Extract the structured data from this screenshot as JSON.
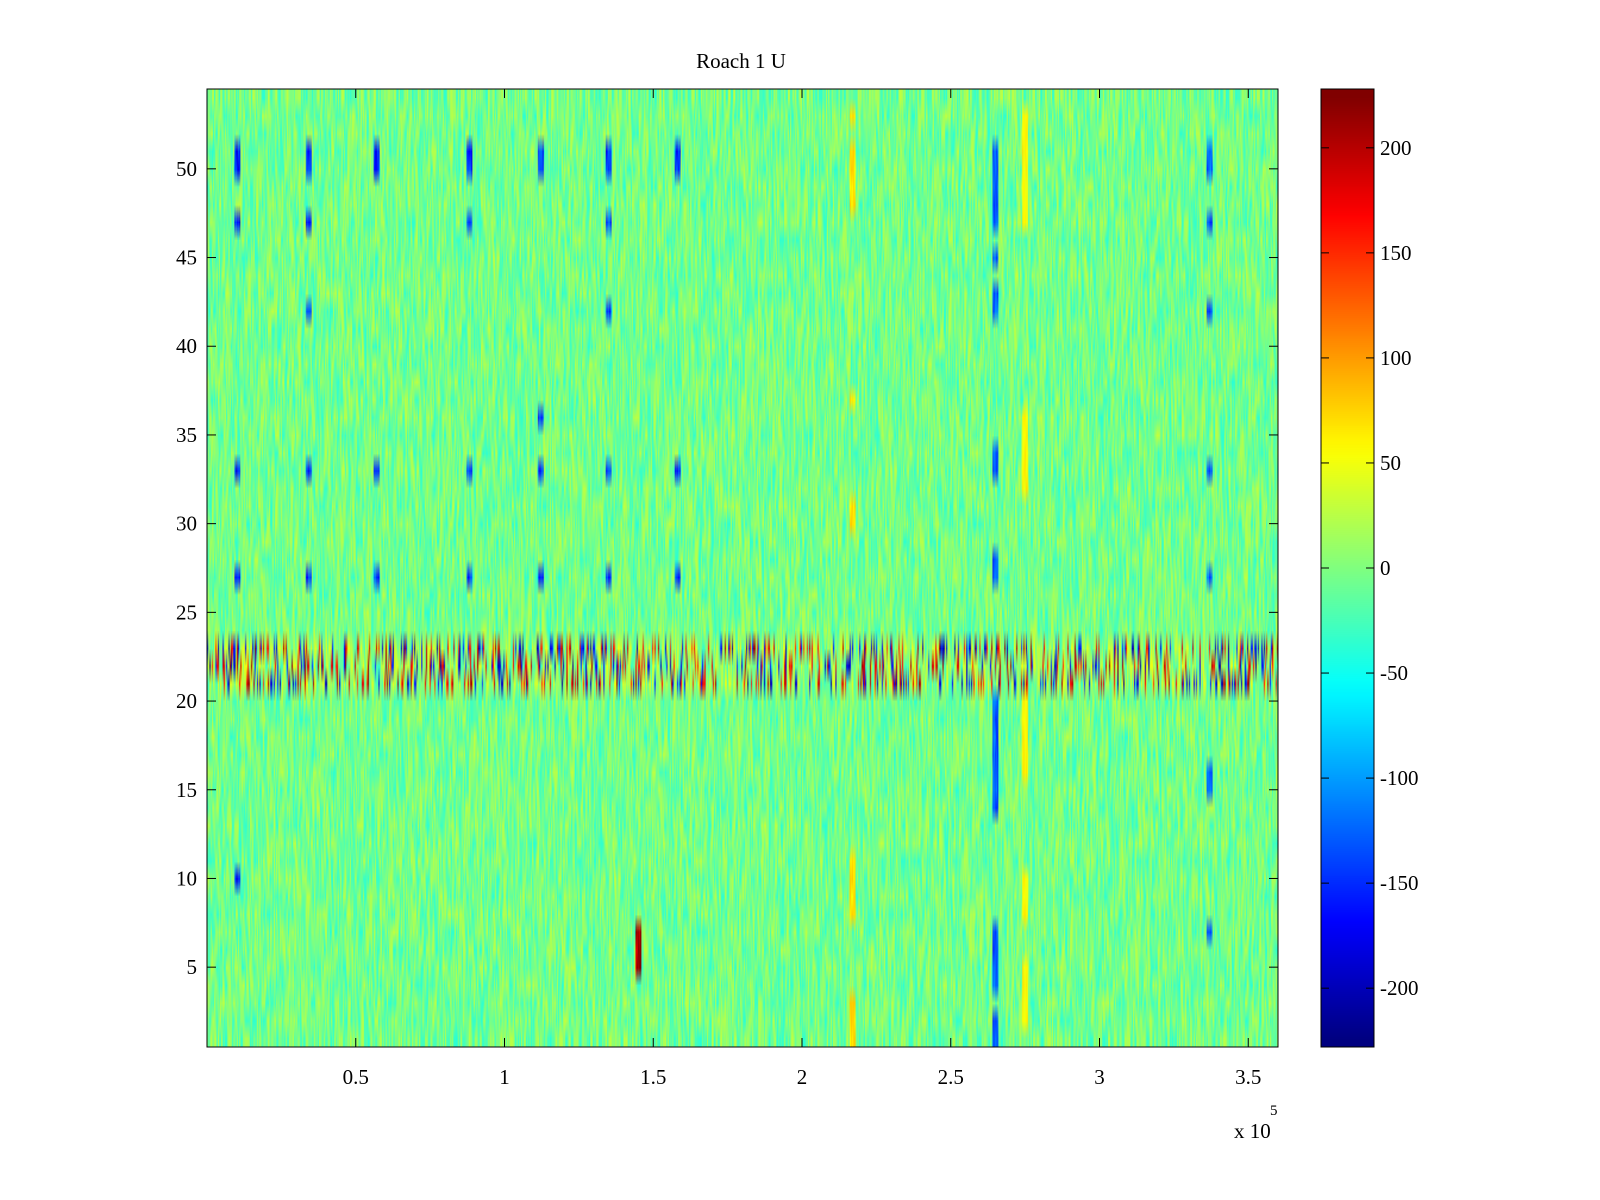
{
  "chart_data": {
    "type": "heatmap",
    "title": "Roach 1 U",
    "xlabel": "",
    "ylabel": "",
    "x_multiplier_label": "x 10",
    "x_multiplier_exponent": "5",
    "xlim": [
      0,
      3.6
    ],
    "ylim": [
      0.5,
      54.5
    ],
    "rows": 54,
    "x_ticks": [
      0.5,
      1,
      1.5,
      2,
      2.5,
      3,
      3.5
    ],
    "x_tick_labels": [
      "0.5",
      "1",
      "1.5",
      "2",
      "2.5",
      "3",
      "3.5"
    ],
    "y_ticks": [
      5,
      10,
      15,
      20,
      25,
      30,
      35,
      40,
      45,
      50
    ],
    "y_tick_labels": [
      "5",
      "10",
      "15",
      "20",
      "25",
      "30",
      "35",
      "40",
      "45",
      "50"
    ],
    "colormap": "jet",
    "clim": [
      -228,
      228
    ],
    "colorbar_ticks": [
      200,
      150,
      100,
      50,
      0,
      -50,
      -100,
      -150,
      -200
    ],
    "colorbar_tick_labels": [
      "200",
      "150",
      "100",
      "50",
      "0",
      "-50",
      "-100",
      "-150",
      "-200"
    ],
    "background_level": -5,
    "noise_amplitude": 35,
    "high_activity_rows": [
      21,
      22,
      23
    ],
    "column_events": [
      {
        "x": 0.1,
        "value": -160,
        "rows": [
          10,
          27,
          33,
          47,
          50,
          51
        ]
      },
      {
        "x": 0.34,
        "value": -150,
        "rows": [
          27,
          33,
          47,
          50,
          51,
          42
        ]
      },
      {
        "x": 0.57,
        "value": -150,
        "rows": [
          27,
          33,
          50,
          51
        ]
      },
      {
        "x": 0.88,
        "value": -150,
        "rows": [
          27,
          33,
          47,
          50,
          51
        ]
      },
      {
        "x": 1.12,
        "value": -150,
        "rows": [
          27,
          33,
          36,
          50,
          51
        ]
      },
      {
        "x": 1.35,
        "value": -150,
        "rows": [
          27,
          33,
          42,
          47,
          50,
          51
        ]
      },
      {
        "x": 1.45,
        "value": 220,
        "rows": [
          5,
          6,
          7
        ]
      },
      {
        "x": 1.58,
        "value": -150,
        "rows": [
          27,
          33,
          50,
          51
        ]
      },
      {
        "x": 2.17,
        "value": 70,
        "rows": [
          1,
          2,
          3,
          8,
          9,
          10,
          11,
          30,
          31,
          37,
          48,
          49,
          50,
          51,
          53
        ]
      },
      {
        "x": 2.65,
        "value": -130,
        "rows": [
          1,
          2,
          4,
          5,
          6,
          7,
          14,
          15,
          16,
          17,
          18,
          19,
          20,
          27,
          28,
          33,
          34,
          42,
          43,
          45,
          47,
          48,
          49,
          50,
          51
        ]
      },
      {
        "x": 2.75,
        "value": 60,
        "rows": [
          2,
          3,
          4,
          5,
          8,
          9,
          10,
          16,
          17,
          18,
          19,
          20,
          32,
          33,
          34,
          35,
          36,
          47,
          48,
          49,
          50,
          51,
          52,
          53
        ]
      },
      {
        "x": 3.37,
        "value": -130,
        "rows": [
          7,
          15,
          16,
          27,
          33,
          42,
          47,
          50,
          51
        ]
      }
    ]
  }
}
